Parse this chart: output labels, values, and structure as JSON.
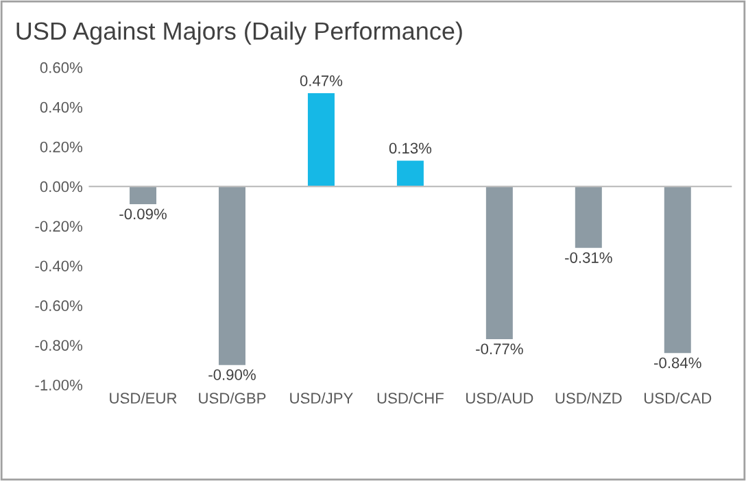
{
  "chart_data": {
    "type": "bar",
    "title": "USD Against Majors (Daily Performance)",
    "categories": [
      "USD/EUR",
      "USD/GBP",
      "USD/JPY",
      "USD/CHF",
      "USD/AUD",
      "USD/NZD",
      "USD/CAD"
    ],
    "values": [
      -0.09,
      -0.9,
      0.47,
      0.13,
      -0.77,
      -0.31,
      -0.84
    ],
    "colors": [
      "#8d9ba4",
      "#8d9ba4",
      "#16b8e6",
      "#16b8e6",
      "#8d9ba4",
      "#8d9ba4",
      "#8d9ba4"
    ],
    "value_labels": [
      "-0.09%",
      "-0.90%",
      "0.47%",
      "0.13%",
      "-0.77%",
      "-0.31%",
      "-0.84%"
    ],
    "ylim": [
      -1.0,
      0.6
    ],
    "yticks": [
      {
        "value": -1.0,
        "label": "-1.00%"
      },
      {
        "value": -0.8,
        "label": "-0.80%"
      },
      {
        "value": -0.6,
        "label": "-0.60%"
      },
      {
        "value": -0.4,
        "label": "-0.40%"
      },
      {
        "value": -0.2,
        "label": "-0.20%"
      },
      {
        "value": 0,
        "label": "0.00%"
      },
      {
        "value": 0.2,
        "label": "0.20%"
      },
      {
        "value": 0.4,
        "label": "0.40%"
      },
      {
        "value": 0.6,
        "label": "0.60%"
      }
    ],
    "legend": false
  }
}
